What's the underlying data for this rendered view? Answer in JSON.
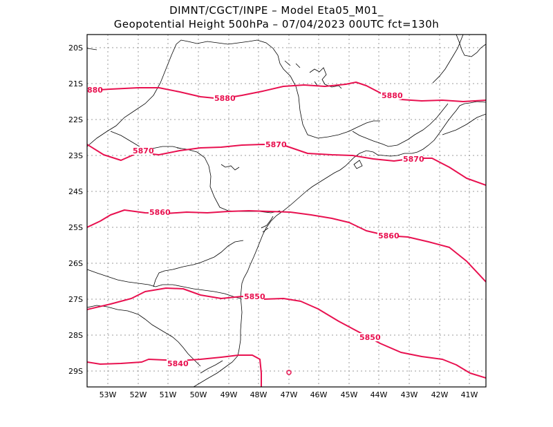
{
  "title": {
    "line1": "DIMNT/CGCT/INPE –   Model Eta05_M01_",
    "line2": "Geopotential Height 500hPa –  07/04/2023 00UTC fct=130h"
  },
  "axes": {
    "lat_labels": [
      "20S",
      "21S",
      "22S",
      "23S",
      "24S",
      "25S",
      "26S",
      "27S",
      "28S",
      "29S"
    ],
    "lon_labels": [
      "53W",
      "52W",
      "51W",
      "50W",
      "49W",
      "48W",
      "47W",
      "46W",
      "45W",
      "44W",
      "43W",
      "42W",
      "41W"
    ]
  },
  "colors": {
    "contour": "#e8104f",
    "grid": "#9a9a9a",
    "coast": "#000000"
  },
  "contours": {
    "c5880": {
      "value": 5880,
      "label": "5880",
      "label_left": "880"
    },
    "c5870": {
      "value": 5870,
      "label": "5870"
    },
    "c5860": {
      "value": 5860,
      "label": "5860"
    },
    "c5850": {
      "value": 5850,
      "label": "5850"
    },
    "c5840": {
      "value": 5840,
      "label": "5840"
    }
  }
}
